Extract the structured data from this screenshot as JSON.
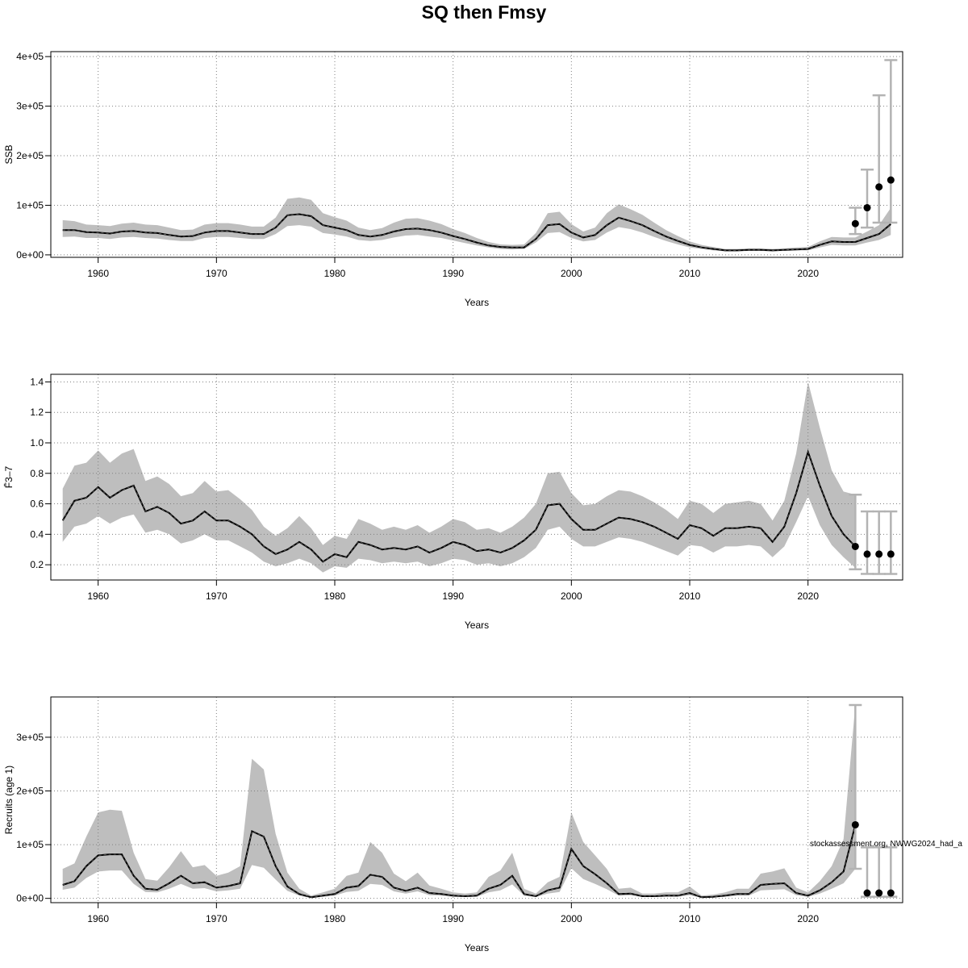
{
  "title": "SQ then Fmsy",
  "watermark": "stockassessment.org, NWWG2024_had_a",
  "colors": {
    "band": "#bebebe",
    "line": "#000000",
    "grid": "#808080",
    "errorbar": "#b3b3b3"
  },
  "chart_data": [
    {
      "type": "line",
      "ylabel": "SSB",
      "xlabel": "Years",
      "xlim": [
        1956,
        2028
      ],
      "xticks": [
        1960,
        1970,
        1980,
        1990,
        2000,
        2010,
        2020
      ],
      "xtick_labels": [
        "1960",
        "1970",
        "1980",
        "1990",
        "2000",
        "2010",
        "2020"
      ],
      "ylim": [
        -5000,
        410000
      ],
      "yticks": [
        0,
        100000,
        200000,
        300000,
        400000
      ],
      "ytick_labels": [
        "0e+00",
        "1e+05",
        "2e+05",
        "3e+05",
        "4e+05"
      ],
      "grid": true,
      "x_start": 1957,
      "estimate": [
        50000,
        50000,
        46000,
        45000,
        43000,
        47000,
        48000,
        45000,
        44000,
        40000,
        37000,
        38000,
        45000,
        48000,
        48000,
        45000,
        42000,
        42000,
        55000,
        80000,
        82000,
        78000,
        60000,
        55000,
        50000,
        40000,
        37000,
        40000,
        47000,
        52000,
        53000,
        50000,
        45000,
        38000,
        32000,
        25000,
        19000,
        16000,
        15000,
        15000,
        32000,
        60000,
        62000,
        45000,
        35000,
        40000,
        60000,
        75000,
        68000,
        60000,
        48000,
        37000,
        28000,
        20000,
        15000,
        12000,
        9000,
        9000,
        10000,
        10000,
        9000,
        10000,
        11000,
        12000,
        20000,
        27000,
        26000,
        26000,
        34000,
        42000,
        62000
      ],
      "lower": [
        36000,
        37000,
        34000,
        34000,
        32000,
        35000,
        36000,
        34000,
        33000,
        30000,
        28000,
        28000,
        34000,
        36000,
        36000,
        34000,
        32000,
        32000,
        42000,
        58000,
        60000,
        57000,
        44000,
        41000,
        37000,
        30000,
        28000,
        30000,
        35000,
        39000,
        40000,
        37000,
        34000,
        29000,
        24000,
        19000,
        15000,
        12000,
        11000,
        12000,
        25000,
        44000,
        46000,
        34000,
        27000,
        30000,
        45000,
        56000,
        52000,
        45000,
        36000,
        28000,
        21000,
        15000,
        12000,
        9000,
        7000,
        7000,
        8000,
        8000,
        7000,
        8000,
        9000,
        9000,
        15000,
        20000,
        19000,
        19000,
        25000,
        30000,
        40000
      ],
      "upper": [
        70000,
        68000,
        61000,
        60000,
        58000,
        63000,
        65000,
        61000,
        60000,
        55000,
        50000,
        51000,
        61000,
        64000,
        64000,
        61000,
        57000,
        57000,
        75000,
        113000,
        116000,
        111000,
        84000,
        76000,
        69000,
        55000,
        50000,
        54000,
        65000,
        73000,
        74000,
        69000,
        62000,
        52000,
        44000,
        34000,
        26000,
        21000,
        20000,
        21000,
        44000,
        84000,
        87000,
        62000,
        47000,
        55000,
        84000,
        102000,
        92000,
        81000,
        65000,
        50000,
        38000,
        27000,
        20000,
        16000,
        12000,
        12000,
        13000,
        13000,
        12000,
        13000,
        15000,
        16000,
        27000,
        36000,
        35000,
        35000,
        47000,
        60000,
        95000
      ],
      "projection": {
        "x": [
          2024,
          2025,
          2026,
          2027
        ],
        "values": [
          63000,
          95000,
          137000,
          151000
        ],
        "lower": [
          42000,
          55000,
          65000,
          65000
        ],
        "upper": [
          95000,
          172000,
          322000,
          393000
        ]
      }
    },
    {
      "type": "line",
      "ylabel": "F̄3–7",
      "xlabel": "Years",
      "xlim": [
        1956,
        2028
      ],
      "xticks": [
        1960,
        1970,
        1980,
        1990,
        2000,
        2010,
        2020
      ],
      "xtick_labels": [
        "1960",
        "1970",
        "1980",
        "1990",
        "2000",
        "2010",
        "2020"
      ],
      "ylim": [
        0.1,
        1.45
      ],
      "yticks": [
        0.2,
        0.4,
        0.6,
        0.8,
        1.0,
        1.2,
        1.4
      ],
      "ytick_labels": [
        "0.2",
        "0.4",
        "0.6",
        "0.8",
        "1.0",
        "1.2",
        "1.4"
      ],
      "grid": true,
      "x_start": 1957,
      "estimate": [
        0.49,
        0.62,
        0.64,
        0.71,
        0.64,
        0.69,
        0.72,
        0.55,
        0.58,
        0.54,
        0.47,
        0.49,
        0.55,
        0.49,
        0.49,
        0.45,
        0.4,
        0.32,
        0.27,
        0.3,
        0.35,
        0.3,
        0.22,
        0.27,
        0.25,
        0.35,
        0.33,
        0.3,
        0.31,
        0.3,
        0.32,
        0.28,
        0.31,
        0.35,
        0.33,
        0.29,
        0.3,
        0.28,
        0.31,
        0.36,
        0.43,
        0.59,
        0.6,
        0.5,
        0.43,
        0.43,
        0.47,
        0.51,
        0.5,
        0.48,
        0.45,
        0.41,
        0.37,
        0.46,
        0.44,
        0.39,
        0.44,
        0.44,
        0.45,
        0.44,
        0.35,
        0.45,
        0.67,
        0.94,
        0.72,
        0.52,
        0.4,
        0.32
      ],
      "lower": [
        0.35,
        0.45,
        0.47,
        0.52,
        0.47,
        0.51,
        0.53,
        0.41,
        0.43,
        0.4,
        0.34,
        0.36,
        0.4,
        0.36,
        0.36,
        0.32,
        0.28,
        0.22,
        0.19,
        0.21,
        0.24,
        0.21,
        0.15,
        0.19,
        0.18,
        0.24,
        0.23,
        0.21,
        0.22,
        0.21,
        0.22,
        0.19,
        0.21,
        0.24,
        0.23,
        0.2,
        0.21,
        0.19,
        0.21,
        0.25,
        0.31,
        0.43,
        0.45,
        0.37,
        0.32,
        0.32,
        0.35,
        0.38,
        0.37,
        0.35,
        0.32,
        0.29,
        0.26,
        0.33,
        0.32,
        0.28,
        0.32,
        0.32,
        0.33,
        0.32,
        0.25,
        0.32,
        0.48,
        0.65,
        0.46,
        0.33,
        0.25,
        0.18
      ],
      "upper": [
        0.7,
        0.85,
        0.87,
        0.95,
        0.87,
        0.93,
        0.96,
        0.75,
        0.78,
        0.73,
        0.65,
        0.67,
        0.75,
        0.68,
        0.69,
        0.63,
        0.56,
        0.45,
        0.39,
        0.44,
        0.52,
        0.44,
        0.33,
        0.39,
        0.37,
        0.5,
        0.47,
        0.43,
        0.45,
        0.43,
        0.46,
        0.41,
        0.45,
        0.5,
        0.48,
        0.43,
        0.44,
        0.41,
        0.45,
        0.51,
        0.6,
        0.8,
        0.81,
        0.67,
        0.59,
        0.6,
        0.65,
        0.69,
        0.68,
        0.65,
        0.61,
        0.56,
        0.5,
        0.62,
        0.6,
        0.54,
        0.6,
        0.61,
        0.62,
        0.6,
        0.49,
        0.62,
        0.93,
        1.4,
        1.1,
        0.82,
        0.68,
        0.66
      ],
      "projection": {
        "x": [
          2024,
          2025,
          2026,
          2027
        ],
        "values": [
          0.32,
          0.27,
          0.27,
          0.27
        ],
        "lower": [
          0.17,
          0.14,
          0.14,
          0.14
        ],
        "upper": [
          0.66,
          0.55,
          0.55,
          0.55
        ]
      }
    },
    {
      "type": "line",
      "ylabel": "Recruits (age 1)",
      "xlabel": "Years",
      "xlim": [
        1956,
        2028
      ],
      "xticks": [
        1960,
        1970,
        1980,
        1990,
        2000,
        2010,
        2020
      ],
      "xtick_labels": [
        "1960",
        "1970",
        "1980",
        "1990",
        "2000",
        "2010",
        "2020"
      ],
      "ylim": [
        -8000,
        375000
      ],
      "yticks": [
        0,
        100000,
        200000,
        300000
      ],
      "ytick_labels": [
        "0e+00",
        "1e+05",
        "2e+05",
        "3e+05"
      ],
      "grid": true,
      "x_start": 1957,
      "estimate": [
        25000,
        32000,
        60000,
        80000,
        82000,
        82000,
        42000,
        18000,
        16000,
        28000,
        42000,
        28000,
        30000,
        20000,
        23000,
        28000,
        125000,
        115000,
        60000,
        22000,
        8000,
        2000,
        5000,
        8000,
        20000,
        23000,
        44000,
        40000,
        20000,
        14000,
        20000,
        10000,
        8000,
        5000,
        4000,
        5000,
        18000,
        25000,
        42000,
        8000,
        4000,
        15000,
        20000,
        92000,
        60000,
        45000,
        28000,
        8000,
        9000,
        4000,
        4000,
        5000,
        5000,
        10000,
        2000,
        3000,
        5000,
        8000,
        8000,
        25000,
        27000,
        28000,
        10000,
        5000,
        15000,
        30000,
        50000,
        137000
      ],
      "lower": [
        16000,
        20000,
        38000,
        50000,
        52000,
        52000,
        27000,
        12000,
        11000,
        18000,
        27000,
        18000,
        19000,
        13000,
        15000,
        18000,
        62000,
        57000,
        35000,
        14000,
        5000,
        1000,
        3000,
        5000,
        12000,
        14000,
        27000,
        25000,
        13000,
        9000,
        13000,
        6000,
        5000,
        3000,
        2500,
        3000,
        11000,
        15000,
        26000,
        5000,
        2500,
        9000,
        12000,
        56000,
        36000,
        27000,
        17000,
        5000,
        5500,
        2500,
        2500,
        3000,
        3000,
        6000,
        1000,
        2000,
        3000,
        5000,
        5000,
        15000,
        16000,
        17000,
        6000,
        3000,
        9000,
        18000,
        28000,
        55000
      ],
      "upper": [
        55000,
        65000,
        115000,
        160000,
        165000,
        163000,
        85000,
        36000,
        33000,
        58000,
        88000,
        58000,
        62000,
        42000,
        48000,
        60000,
        260000,
        240000,
        120000,
        48000,
        18000,
        5000,
        11000,
        18000,
        42000,
        48000,
        105000,
        85000,
        46000,
        32000,
        48000,
        24000,
        18000,
        11000,
        9000,
        11000,
        40000,
        52000,
        85000,
        18000,
        9000,
        30000,
        40000,
        160000,
        105000,
        80000,
        55000,
        18000,
        20000,
        9000,
        9000,
        11000,
        11000,
        22000,
        5000,
        7000,
        11000,
        18000,
        18000,
        46000,
        50000,
        56000,
        20000,
        11000,
        32000,
        60000,
        110000,
        360000
      ],
      "projection": {
        "x": [
          2024,
          2025,
          2026,
          2027
        ],
        "values": [
          137000,
          10000,
          10000,
          10000
        ],
        "lower": [
          55000,
          3000,
          3000,
          3000
        ],
        "upper": [
          360000,
          95000,
          95000,
          95000
        ]
      }
    }
  ]
}
